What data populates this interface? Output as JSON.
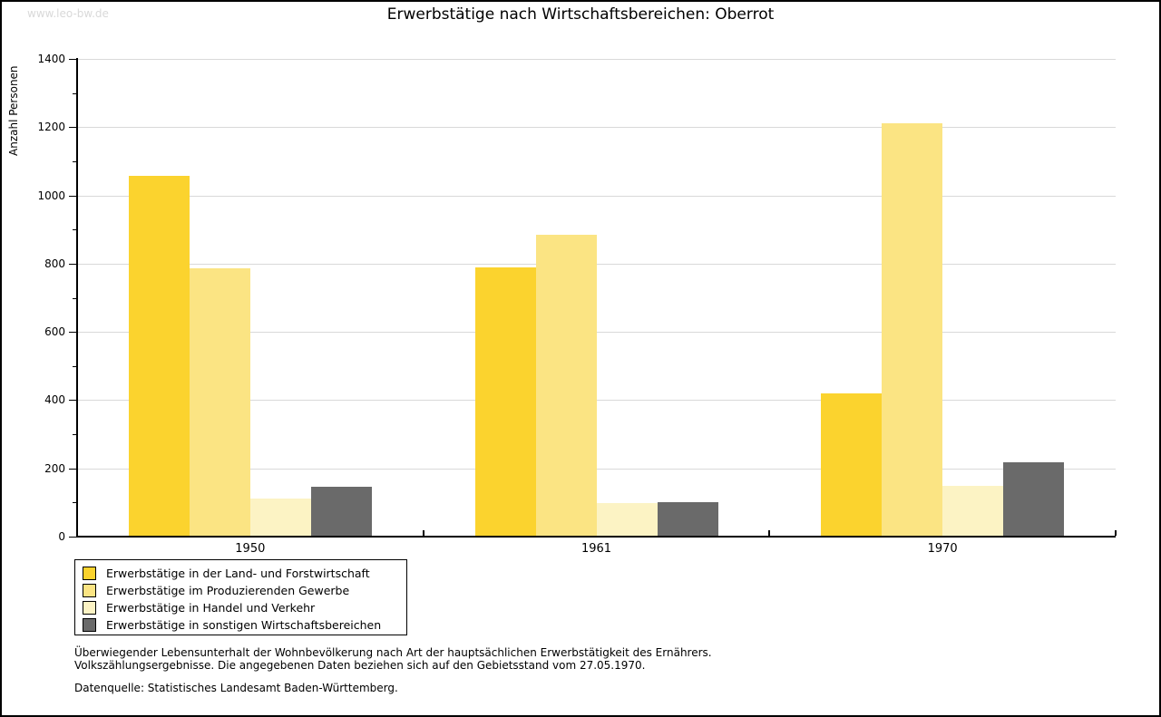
{
  "watermark": "www.leo-bw.de",
  "title": "Erwerbstätige nach Wirtschaftsbereichen: Oberrot",
  "chart_data": {
    "type": "bar",
    "title": "Erwerbstätige nach Wirtschaftsbereichen: Oberrot",
    "xlabel": "",
    "ylabel": "Anzahl Personen",
    "categories": [
      "1950",
      "1961",
      "1970"
    ],
    "series": [
      {
        "name": "Erwerbstätige in der Land- und Forstwirtschaft",
        "color": "#fbd32e",
        "values": [
          1058,
          788,
          420
        ]
      },
      {
        "name": "Erwerbstätige im Produzierenden Gewerbe",
        "color": "#fbe483",
        "values": [
          787,
          885,
          1212
        ]
      },
      {
        "name": "Erwerbstätige in Handel und Verkehr",
        "color": "#fcf3c4",
        "values": [
          112,
          97,
          149
        ]
      },
      {
        "name": "Erwerbstätige in sonstigen Wirtschaftsbereichen",
        "color": "#6a6a6a",
        "values": [
          145,
          101,
          217
        ]
      }
    ],
    "ylim": [
      0,
      1400
    ],
    "ytick_interval": 200,
    "yminor_interval": 100,
    "grid": true,
    "legend_position": "bottom-left"
  },
  "footnotes": {
    "line1": "Überwiegender Lebensunterhalt der Wohnbevölkerung nach Art der hauptsächlichen Erwerbstätigkeit des Ernährers.",
    "line2": "Volkszählungsergebnisse. Die angegebenen Daten beziehen sich auf den Gebietsstand vom 27.05.1970.",
    "source": "Datenquelle: Statistisches Landesamt Baden-Württemberg."
  },
  "colors": {
    "grid": "#d9d9d9",
    "axis": "#000000",
    "watermark": "#d9d9d9"
  }
}
